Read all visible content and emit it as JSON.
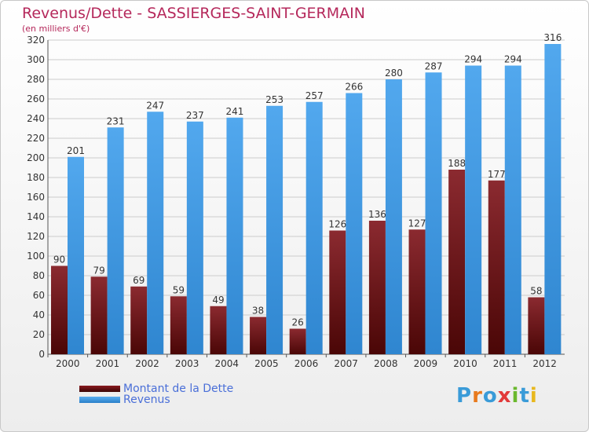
{
  "header": {
    "title": "Revenus/Dette - SASSIERGES-SAINT-GERMAIN",
    "subtitle": "(en milliers d'€)"
  },
  "logo": {
    "letters": [
      {
        "ch": "P",
        "color": "#3a9bd8"
      },
      {
        "ch": "r",
        "color": "#e87a1e"
      },
      {
        "ch": "o",
        "color": "#3a9bd8"
      },
      {
        "ch": "x",
        "color": "#e23a3a"
      },
      {
        "ch": "i",
        "color": "#6ab82e"
      },
      {
        "ch": "t",
        "color": "#3a9bd8"
      },
      {
        "ch": "i",
        "color": "#e8b81e"
      }
    ]
  },
  "colors": {
    "debt": "#8b1a1f",
    "revenue": "#3f9ae3",
    "grid": "#cccccc"
  },
  "chart_data": {
    "type": "bar",
    "title": "Revenus/Dette - SASSIERGES-SAINT-GERMAIN",
    "subtitle": "(en milliers d'€)",
    "categories": [
      "2000",
      "2001",
      "2002",
      "2003",
      "2004",
      "2005",
      "2006",
      "2007",
      "2008",
      "2009",
      "2010",
      "2011",
      "2012"
    ],
    "series": [
      {
        "name": "Montant de la Dette",
        "values": [
          90,
          79,
          69,
          59,
          49,
          38,
          26,
          126,
          136,
          127,
          188,
          177,
          58
        ]
      },
      {
        "name": "Revenus",
        "values": [
          201,
          231,
          247,
          237,
          241,
          253,
          257,
          266,
          280,
          287,
          294,
          294,
          316
        ]
      }
    ],
    "yticks": [
      0,
      20,
      40,
      60,
      80,
      100,
      120,
      140,
      160,
      180,
      200,
      220,
      240,
      260,
      280,
      300,
      320
    ],
    "ylim": [
      0,
      320
    ],
    "grid": true,
    "legend": "bottom-left"
  }
}
